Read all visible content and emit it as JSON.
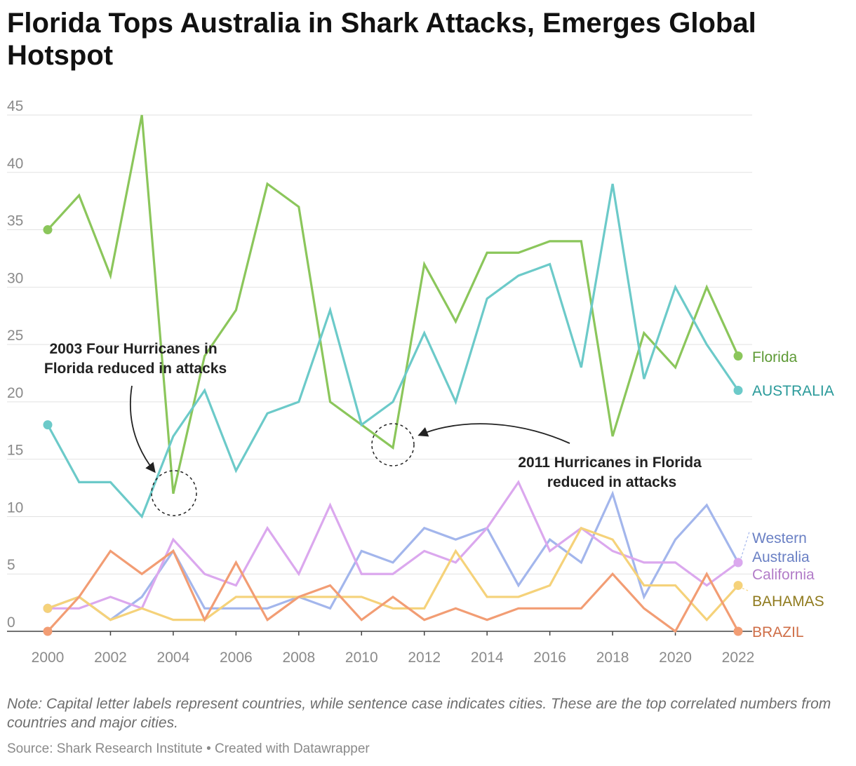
{
  "title": "Florida Tops Australia in Shark Attacks, Emerges Global Hotspot",
  "note": "Note: Capital letter labels represent countries, while sentence case indicates cities. These are the top correlated numbers from countries and major cities.",
  "source": "Source: Shark Research Institute • Created with Datawrapper",
  "chart_data": {
    "type": "line",
    "x": [
      2000,
      2001,
      2002,
      2003,
      2004,
      2005,
      2006,
      2007,
      2008,
      2009,
      2010,
      2011,
      2012,
      2013,
      2014,
      2015,
      2016,
      2017,
      2018,
      2019,
      2020,
      2021,
      2022
    ],
    "xticks": [
      "2000",
      "2002",
      "2004",
      "2006",
      "2008",
      "2010",
      "2012",
      "2014",
      "2016",
      "2018",
      "2020",
      "2022"
    ],
    "yticks": [
      "0",
      "5",
      "10",
      "15",
      "20",
      "25",
      "30",
      "35",
      "40",
      "45"
    ],
    "ylim": [
      0,
      45
    ],
    "grid": true,
    "series": [
      {
        "name": "Florida",
        "color": "#8bc65b",
        "label_color": "#5e9a36",
        "values": [
          35,
          38,
          31,
          45,
          12,
          24,
          28,
          39,
          37,
          20,
          18,
          16,
          32,
          27,
          33,
          33,
          34,
          34,
          17,
          26,
          23,
          30,
          24
        ]
      },
      {
        "name": "AUSTRALIA",
        "color": "#6ccac9",
        "label_color": "#2a9a9a",
        "values": [
          18,
          13,
          13,
          10,
          17,
          21,
          14,
          19,
          20,
          28,
          18,
          20,
          26,
          20,
          29,
          31,
          32,
          23,
          39,
          22,
          30,
          25,
          21
        ]
      },
      {
        "name": "Western\nAustralia",
        "color": "#a3b6ec",
        "label_color": "#6a80c4",
        "values": [
          2,
          3,
          1,
          3,
          7,
          2,
          2,
          2,
          3,
          2,
          7,
          6,
          9,
          8,
          9,
          4,
          8,
          6,
          12,
          3,
          8,
          11,
          6
        ]
      },
      {
        "name": "California",
        "color": "#dba8ee",
        "label_color": "#b27cc8",
        "values": [
          2,
          2,
          3,
          2,
          8,
          5,
          4,
          9,
          5,
          11,
          5,
          5,
          7,
          6,
          9,
          13,
          7,
          9,
          7,
          6,
          6,
          4,
          6
        ]
      },
      {
        "name": "BAHAMAS",
        "color": "#f5d27a",
        "label_color": "#8f7a1d",
        "values": [
          2,
          3,
          1,
          2,
          1,
          1,
          3,
          3,
          3,
          3,
          3,
          2,
          2,
          7,
          3,
          3,
          4,
          9,
          8,
          4,
          4,
          1,
          4
        ]
      },
      {
        "name": "BRAZIL",
        "color": "#f29d74",
        "label_color": "#cf6e47",
        "values": [
          0,
          3,
          7,
          5,
          7,
          1,
          6,
          1,
          3,
          4,
          1,
          3,
          1,
          2,
          1,
          2,
          2,
          2,
          5,
          2,
          0,
          5,
          0
        ]
      }
    ],
    "annotations": [
      {
        "text": "2003 Four Hurricanes in\nFlorida reduced in attacks",
        "target_x": 2004,
        "target_y": 12
      },
      {
        "text": "2011 Hurricanes in Florida\nreduced in attacks",
        "target_x": 2011,
        "target_y": 16
      }
    ]
  }
}
